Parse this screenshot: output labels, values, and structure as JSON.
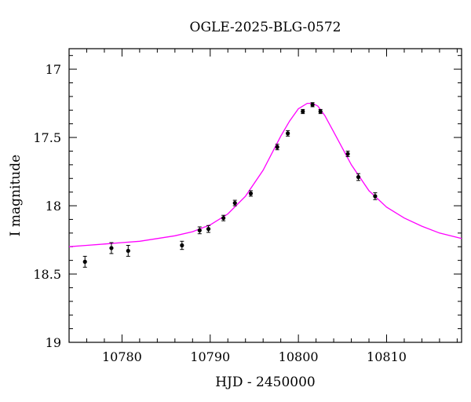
{
  "chart_data": {
    "type": "scatter",
    "title": "OGLE-2025-BLG-0572",
    "xlabel": "HJD - 2450000",
    "ylabel": "I magnitude",
    "xlim": [
      10774,
      10818.5
    ],
    "ylim": [
      19,
      16.85
    ],
    "y_inverted": true,
    "x_ticks": [
      10780,
      10790,
      10800,
      10810
    ],
    "y_ticks": [
      17,
      17.5,
      18,
      18.5,
      19
    ],
    "x_tick_labels": [
      "10780",
      "10790",
      "10800",
      "10810"
    ],
    "y_tick_labels": [
      "17",
      "17.5",
      "18",
      "18.5",
      "19"
    ],
    "grid": false,
    "legend": "none",
    "colors": {
      "data": "#000000",
      "model": "#ff00ff",
      "axes": "#000000"
    },
    "series": [
      {
        "kind": "points_with_errorbars",
        "x": [
          10775.8,
          10778.8,
          10780.7,
          10786.8,
          10788.8,
          10789.8,
          10791.5,
          10792.8,
          10794.6,
          10797.6,
          10798.8,
          10800.5,
          10801.6,
          10802.5,
          10805.6,
          10806.8,
          10808.7
        ],
        "y": [
          18.41,
          18.31,
          18.33,
          18.29,
          18.18,
          18.17,
          18.09,
          17.98,
          17.91,
          17.57,
          17.47,
          17.31,
          17.26,
          17.31,
          17.62,
          17.79,
          17.93
        ],
        "err": [
          0.04,
          0.04,
          0.04,
          0.03,
          0.025,
          0.025,
          0.02,
          0.02,
          0.02,
          0.02,
          0.02,
          0.015,
          0.015,
          0.015,
          0.02,
          0.025,
          0.025
        ]
      },
      {
        "kind": "model_curve",
        "x": [
          10774,
          10776,
          10778,
          10780,
          10782,
          10784,
          10786,
          10788,
          10790,
          10792,
          10794,
          10796,
          10798,
          10799,
          10800,
          10801,
          10801.6,
          10802.2,
          10803,
          10804,
          10806,
          10808,
          10810,
          10812,
          10814,
          10816,
          10818.5
        ],
        "y": [
          18.3,
          18.29,
          18.28,
          18.27,
          18.26,
          18.24,
          18.22,
          18.19,
          18.14,
          18.06,
          17.93,
          17.74,
          17.49,
          17.38,
          17.29,
          17.25,
          17.25,
          17.27,
          17.34,
          17.46,
          17.7,
          17.89,
          18.01,
          18.09,
          18.15,
          18.2,
          18.24
        ]
      }
    ]
  }
}
